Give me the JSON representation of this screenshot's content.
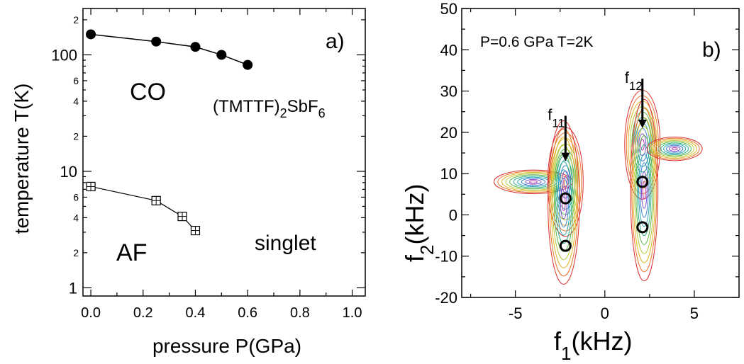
{
  "chart_data": [
    {
      "panel_label": "a)",
      "type": "scatter",
      "xlabel": "pressure P(GPa)",
      "ylabel": "temperature T(K)",
      "xlim": [
        -0.03,
        1.05
      ],
      "ylim": [
        0.85,
        250
      ],
      "y_scale": "log",
      "x_ticks": [
        "0.0",
        "0.2",
        "0.4",
        "0.6",
        "0.8",
        "1.0"
      ],
      "y_major_ticks": [
        "1",
        "10",
        "100"
      ],
      "y_minor_ticks": [
        "2",
        "4",
        "6",
        "2",
        "4",
        "6",
        "2"
      ],
      "series": [
        {
          "marker": "filled-circle",
          "x": [
            0.0,
            0.25,
            0.4,
            0.5,
            0.6
          ],
          "y": [
            150,
            130,
            117,
            100,
            82
          ]
        },
        {
          "marker": "open-square",
          "x": [
            0.0,
            0.25,
            0.35,
            0.4
          ],
          "y": [
            7.4,
            5.6,
            4.1,
            3.1
          ]
        }
      ],
      "annotations": {
        "co": "CO",
        "compound_main": "(TMTTF)",
        "compound_sub1": "2",
        "compound_mid": "SbF",
        "compound_sub2": "6",
        "af": "AF",
        "singlet": "singlet"
      }
    },
    {
      "panel_label": "b)",
      "type": "heatmap",
      "description_kind": "contour",
      "title": "P=0.6 GPa T=2K",
      "xlabel_main": "f",
      "xlabel_sub": "1",
      "xlabel_unit": "(kHz)",
      "ylabel_main": "f",
      "ylabel_sub": "2",
      "ylabel_unit": "(kHz)",
      "xlim": [
        -8,
        7.5
      ],
      "ylim": [
        -20,
        50
      ],
      "x_ticks": [
        "-5",
        "0",
        "5"
      ],
      "y_ticks": [
        "-20",
        "-10",
        "0",
        "10",
        "20",
        "30",
        "40",
        "50"
      ],
      "peaks": [
        {
          "x": -4.0,
          "y": 8.0,
          "sx": 1.0,
          "sy": 1.3
        },
        {
          "x": -2.2,
          "y": 8.0,
          "sx": 0.45,
          "sy": 6.0
        },
        {
          "x": -2.3,
          "y": 3.0,
          "sx": 0.4,
          "sy": 9.0
        },
        {
          "x": 2.1,
          "y": 17.0,
          "sx": 0.45,
          "sy": 6.0
        },
        {
          "x": 2.2,
          "y": 6.0,
          "sx": 0.35,
          "sy": 10.0
        },
        {
          "x": 3.9,
          "y": 16.0,
          "sx": 0.7,
          "sy": 1.3
        }
      ],
      "contour_colors": [
        "#d93030",
        "#e8762b",
        "#e3b62a",
        "#b9c93a",
        "#5db84a",
        "#2fae8a",
        "#2aa3b8",
        "#3c7fcf",
        "#7a4fcf",
        "#c23aa8"
      ],
      "circles": [
        {
          "x": -2.2,
          "y": 4
        },
        {
          "x": -2.2,
          "y": -7.5
        },
        {
          "x": 2.1,
          "y": 8
        },
        {
          "x": 2.1,
          "y": -3
        }
      ],
      "arrows": [
        {
          "label_main": "f",
          "label_sub": "11",
          "x": -2.2,
          "y_from": 24,
          "y_to": 13
        },
        {
          "label_main": "f",
          "label_sub": "12",
          "x": 2.1,
          "y_from": 33,
          "y_to": 21
        }
      ]
    }
  ]
}
